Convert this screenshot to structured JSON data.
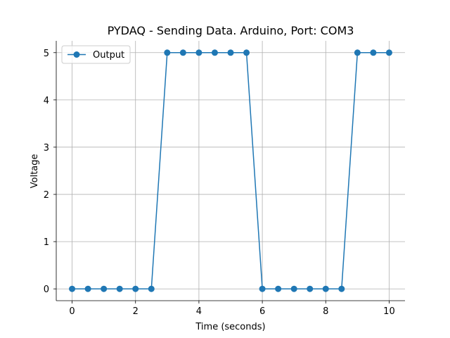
{
  "chart_data": {
    "type": "line",
    "title": "PYDAQ - Sending Data. Arduino, Port: COM3",
    "xlabel": "Time (seconds)",
    "ylabel": "Voltage",
    "xlim": [
      -0.5,
      10.5
    ],
    "ylim": [
      -0.25,
      5.25
    ],
    "xticks": [
      0,
      2,
      4,
      6,
      8,
      10
    ],
    "yticks": [
      0,
      1,
      2,
      3,
      4,
      5
    ],
    "grid": true,
    "legend_position": "top-left",
    "color": "#1f77b4",
    "series": [
      {
        "name": "Output",
        "x": [
          0,
          0.5,
          1,
          1.5,
          2,
          2.5,
          3,
          3.5,
          4,
          4.5,
          5,
          5.5,
          6,
          6.5,
          7,
          7.5,
          8,
          8.5,
          9,
          9.5,
          10
        ],
        "y": [
          0,
          0,
          0,
          0,
          0,
          0,
          5,
          5,
          5,
          5,
          5,
          5,
          0,
          0,
          0,
          0,
          0,
          0,
          5,
          5,
          5
        ]
      }
    ]
  }
}
